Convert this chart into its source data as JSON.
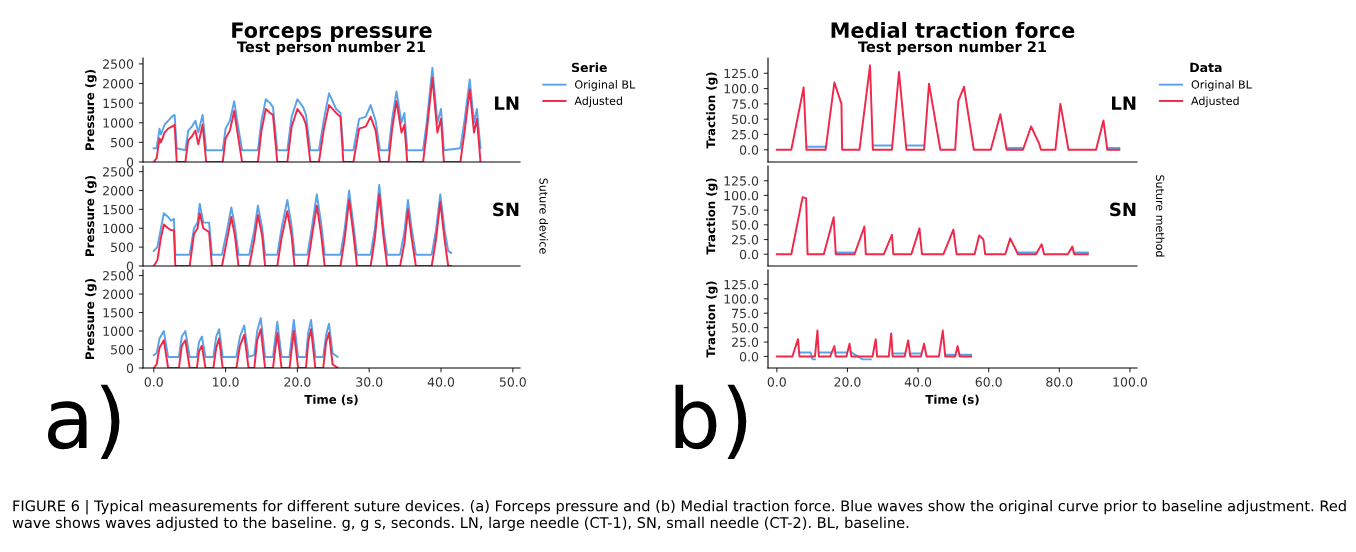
{
  "chart_data": [
    {
      "type": "line",
      "title": "Forceps pressure",
      "subtitle": "Test person number 21",
      "ylabel": "Pressure (g)",
      "legend_title": "Serie",
      "legend": "right",
      "tick_labels": "y",
      "grid": false,
      "xlim": [
        -1.5,
        51
      ],
      "ylim": [
        0,
        2650
      ],
      "yticks": [
        0,
        500,
        1000,
        1500,
        2000,
        2500
      ],
      "annotations": [
        "LN"
      ],
      "x": [
        0.0,
        0.4,
        0.8,
        1.0,
        1.5,
        2.0,
        2.5,
        2.9,
        3.2,
        4.4,
        4.8,
        5.3,
        5.8,
        6.2,
        6.8,
        7.3,
        9.6,
        10.0,
        10.6,
        11.2,
        11.7,
        12.3,
        14.5,
        15.0,
        15.6,
        16.2,
        16.6,
        17.2,
        18.6,
        19.2,
        20.0,
        20.8,
        21.2,
        21.8,
        23.0,
        23.7,
        24.4,
        25.4,
        26.0,
        26.4,
        27.8,
        28.6,
        29.5,
        30.2,
        30.9,
        31.5,
        32.7,
        33.2,
        33.8,
        34.5,
        34.9,
        35.3,
        37.5,
        38.0,
        38.8,
        39.5,
        40.0,
        40.4,
        42.7,
        43.3,
        44.0,
        44.6,
        45.0,
        45.5
      ],
      "series": [
        {
          "name": "Original BL",
          "color": "#5ba3e8",
          "values": [
            350,
            350,
            850,
            700,
            950,
            1050,
            1150,
            1200,
            350,
            300,
            800,
            900,
            1050,
            750,
            1200,
            300,
            300,
            850,
            1050,
            1550,
            950,
            300,
            300,
            1050,
            1600,
            1500,
            1400,
            300,
            300,
            1150,
            1600,
            1400,
            1200,
            300,
            300,
            1100,
            1750,
            1350,
            1250,
            300,
            300,
            1100,
            1150,
            1450,
            1050,
            300,
            300,
            1100,
            1800,
            1000,
            1250,
            300,
            300,
            1000,
            2400,
            1000,
            1350,
            300,
            350,
            1100,
            2100,
            1000,
            1350,
            350
          ]
        },
        {
          "name": "Adjusted",
          "color": "#f0284a",
          "values": [
            0,
            100,
            600,
            500,
            750,
            850,
            900,
            950,
            0,
            0,
            550,
            650,
            800,
            450,
            950,
            0,
            0,
            600,
            800,
            1300,
            700,
            0,
            0,
            800,
            1350,
            1250,
            1200,
            0,
            0,
            900,
            1350,
            1150,
            950,
            0,
            0,
            850,
            1450,
            1250,
            1150,
            0,
            0,
            850,
            900,
            1150,
            800,
            0,
            0,
            850,
            1550,
            750,
            950,
            0,
            0,
            750,
            2150,
            750,
            1100,
            0,
            0,
            800,
            1850,
            750,
            1100,
            0
          ]
        }
      ]
    },
    {
      "type": "line",
      "ylabel": "Pressure (g)",
      "tick_labels": "y",
      "grid": false,
      "xlim": [
        -1.5,
        51
      ],
      "ylim": [
        0,
        2650
      ],
      "yticks": [
        0,
        500,
        1000,
        1500,
        2000,
        2500
      ],
      "annotations": [
        "SN",
        "Suture device"
      ],
      "x": [
        0.0,
        0.5,
        1.0,
        1.4,
        2.0,
        2.4,
        2.8,
        3.0,
        5.0,
        5.6,
        6.1,
        6.4,
        6.9,
        7.7,
        8.1,
        9.5,
        10.2,
        10.8,
        11.3,
        11.8,
        13.3,
        14.0,
        14.5,
        15.1,
        15.5,
        17.2,
        17.8,
        18.6,
        19.2,
        19.6,
        21.4,
        22.0,
        22.7,
        23.3,
        23.8,
        26.0,
        26.6,
        27.2,
        27.8,
        28.3,
        30.2,
        30.8,
        31.4,
        32.0,
        32.5,
        34.3,
        34.9,
        35.4,
        35.9,
        36.5,
        38.7,
        39.3,
        39.9,
        40.5,
        41.0,
        41.4
      ],
      "series": [
        {
          "color": "#5ba3e8",
          "values": [
            400,
            500,
            1000,
            1400,
            1300,
            1200,
            1250,
            300,
            300,
            1000,
            1150,
            1650,
            1150,
            1150,
            300,
            300,
            950,
            1550,
            1050,
            300,
            300,
            950,
            1600,
            1000,
            300,
            300,
            1000,
            1750,
            1050,
            300,
            300,
            1000,
            1900,
            1150,
            300,
            300,
            1000,
            2000,
            1100,
            300,
            300,
            1000,
            2150,
            1000,
            300,
            300,
            900,
            1750,
            1000,
            300,
            300,
            950,
            1900,
            950,
            400,
            350
          ]
        },
        {
          "color": "#f0284a",
          "values": [
            0,
            150,
            750,
            1100,
            1000,
            950,
            950,
            0,
            0,
            850,
            1000,
            1400,
            1000,
            900,
            0,
            0,
            700,
            1300,
            800,
            0,
            0,
            700,
            1350,
            800,
            0,
            0,
            750,
            1450,
            800,
            0,
            0,
            750,
            1600,
            850,
            0,
            0,
            750,
            1750,
            850,
            0,
            0,
            750,
            1900,
            750,
            0,
            0,
            600,
            1500,
            750,
            0,
            0,
            700,
            1700,
            700,
            0,
            0
          ]
        }
      ]
    },
    {
      "type": "line",
      "ylabel": "Pressure (g)",
      "xlabel": "Time (s)",
      "grid": false,
      "xlim": [
        -1.5,
        51
      ],
      "ylim": [
        0,
        2650
      ],
      "yticks": [
        0,
        500,
        1000,
        1500,
        2000,
        2500
      ],
      "xticks": [
        {
          "value": 0,
          "label": "0.0"
        },
        {
          "value": 10,
          "label": "10.0"
        },
        {
          "value": 20,
          "label": "20.0"
        },
        {
          "value": 30,
          "label": "30.0"
        },
        {
          "value": 40,
          "label": "40.0"
        },
        {
          "value": 50,
          "label": "50.0"
        }
      ],
      "annotations": [
        "a)",
        "FIGURE 6 | Typical measurements for different suture devices. (a) Forceps pressure and (b) Medial traction force. Blue waves show the original curve prior to baseline adjustment. Red wave shows waves adjusted to the baseline. g, g s, seconds. LN, large needle (CT-1), SN, small needle (CT-2). BL, baseline."
      ],
      "x": [
        0.0,
        0.4,
        0.8,
        1.4,
        2.0,
        3.5,
        3.9,
        4.4,
        5.0,
        6.0,
        6.3,
        6.7,
        7.2,
        8.3,
        8.7,
        9.1,
        9.6,
        11.5,
        12.0,
        12.6,
        13.2,
        14.0,
        14.4,
        14.9,
        15.5,
        16.6,
        17.2,
        17.8,
        18.9,
        19.5,
        20.1,
        21.2,
        21.5,
        21.9,
        22.5,
        23.6,
        24.0,
        24.4,
        24.9,
        25.6
      ],
      "series": [
        {
          "color": "#5ba3e8",
          "values": [
            350,
            400,
            800,
            1000,
            300,
            300,
            850,
            1000,
            300,
            300,
            700,
            850,
            300,
            300,
            850,
            1050,
            300,
            300,
            850,
            1150,
            300,
            350,
            1000,
            1350,
            300,
            300,
            1250,
            300,
            300,
            1300,
            300,
            300,
            950,
            1300,
            300,
            300,
            900,
            1200,
            400,
            300
          ]
        },
        {
          "color": "#f0284a",
          "values": [
            0,
            100,
            550,
            750,
            0,
            0,
            600,
            750,
            0,
            0,
            450,
            600,
            0,
            0,
            550,
            800,
            0,
            0,
            600,
            900,
            0,
            0,
            750,
            1050,
            0,
            0,
            950,
            0,
            0,
            1000,
            0,
            0,
            700,
            1050,
            0,
            0,
            700,
            950,
            100,
            0
          ]
        }
      ]
    },
    {
      "type": "line",
      "title": "Medial traction force",
      "subtitle": "Test person number 21",
      "ylabel": "Traction (g)",
      "legend_title": "Data",
      "legend": "right",
      "tick_labels": "y",
      "grid": false,
      "xlim": [
        -2.5,
        102
      ],
      "ylim": [
        -20,
        150
      ],
      "yticks": [
        {
          "value": 0,
          "label": "0.0"
        },
        {
          "value": 25,
          "label": "25.0"
        },
        {
          "value": 50,
          "label": "50.0"
        },
        {
          "value": 75,
          "label": "75.0"
        },
        {
          "value": 100,
          "label": "100.0"
        },
        {
          "value": 125,
          "label": "125.0"
        }
      ],
      "annotations": [
        "LN"
      ],
      "x": [
        0,
        4.1,
        7.6,
        8.4,
        13.8,
        16.3,
        18.3,
        18.5,
        23.4,
        26.4,
        27.2,
        32.6,
        34.6,
        36.7,
        41.7,
        43.1,
        46.3,
        50.5,
        51.4,
        53.0,
        55.8,
        60.6,
        63.3,
        65.1,
        69.7,
        72.0,
        74.3,
        74.8,
        78.9,
        80.3,
        82.6,
        90.4,
        92.5,
        93.6,
        97.0
      ],
      "series": [
        {
          "name": "Original BL",
          "color": "#5ba3e8",
          "values": [
            null,
            null,
            null,
            5,
            5,
            null,
            null,
            null,
            null,
            null,
            7,
            7,
            null,
            7,
            7,
            null,
            null,
            null,
            null,
            null,
            null,
            null,
            null,
            3,
            3,
            null,
            null,
            null,
            null,
            null,
            null,
            null,
            null,
            3,
            3
          ]
        },
        {
          "name": "Adjusted",
          "color": "#f0284a",
          "values": [
            0,
            0,
            102,
            0,
            0,
            110,
            75,
            0,
            0,
            138,
            0,
            0,
            127,
            0,
            0,
            108,
            0,
            0,
            80,
            103,
            0,
            0,
            58,
            0,
            0,
            38,
            10,
            0,
            0,
            75,
            0,
            0,
            48,
            0,
            0
          ]
        }
      ]
    },
    {
      "type": "line",
      "ylabel": "Traction (g)",
      "tick_labels": "y",
      "grid": false,
      "xlim": [
        -2.5,
        102
      ],
      "ylim": [
        -20,
        150
      ],
      "yticks": [
        {
          "value": 0,
          "label": "0.0"
        },
        {
          "value": 25,
          "label": "25.0"
        },
        {
          "value": 50,
          "label": "50.0"
        },
        {
          "value": 75,
          "label": "75.0"
        },
        {
          "value": 100,
          "label": "100.0"
        },
        {
          "value": 125,
          "label": "125.0"
        }
      ],
      "annotations": [
        "SN",
        "Suture method"
      ],
      "x": [
        0,
        4.1,
        7.3,
        8.3,
        8.7,
        13.3,
        16.1,
        16.7,
        22.0,
        24.8,
        25.2,
        30.3,
        32.6,
        33.0,
        38.1,
        40.4,
        41.1,
        47.2,
        50.0,
        50.9,
        56.0,
        57.3,
        58.5,
        59.0,
        64.7,
        66.1,
        68.3,
        73.4,
        75.0,
        75.7,
        82.4,
        83.7,
        84.2,
        88.1
      ],
      "series": [
        {
          "color": "#5ba3e8",
          "values": [
            null,
            null,
            null,
            null,
            null,
            null,
            null,
            3,
            3,
            null,
            null,
            null,
            null,
            null,
            null,
            null,
            null,
            null,
            null,
            null,
            null,
            null,
            null,
            null,
            null,
            null,
            3,
            3,
            null,
            null,
            null,
            null,
            3,
            3
          ]
        },
        {
          "color": "#f0284a",
          "values": [
            0,
            0,
            97,
            95,
            0,
            0,
            63,
            0,
            0,
            47,
            0,
            0,
            33,
            0,
            0,
            44,
            0,
            0,
            42,
            0,
            0,
            32,
            25,
            0,
            0,
            27,
            0,
            0,
            17,
            0,
            0,
            13,
            0,
            0
          ]
        }
      ]
    },
    {
      "type": "line",
      "ylabel": "Traction (g)",
      "xlabel": "Time (s)",
      "grid": false,
      "xlim": [
        -2.5,
        102
      ],
      "ylim": [
        -20,
        150
      ],
      "yticks": [
        {
          "value": 0,
          "label": "0.0"
        },
        {
          "value": 25,
          "label": "25.0"
        },
        {
          "value": 50,
          "label": "50.0"
        },
        {
          "value": 75,
          "label": "75.0"
        },
        {
          "value": 100,
          "label": "100.0"
        },
        {
          "value": 125,
          "label": "125.0"
        }
      ],
      "xticks": [
        {
          "value": 0,
          "label": "0.0"
        },
        {
          "value": 20,
          "label": "20.0"
        },
        {
          "value": 40,
          "label": "40.0"
        },
        {
          "value": 60,
          "label": "60.0"
        },
        {
          "value": 80,
          "label": "80.0"
        },
        {
          "value": 100,
          "label": "100.0"
        }
      ],
      "annotations": [
        "b)"
      ],
      "x": [
        0,
        4.4,
        6.0,
        6.4,
        9.6,
        10.1,
        10.8,
        11.5,
        11.9,
        15.1,
        16.3,
        16.7,
        19.7,
        20.6,
        21.1,
        24.3,
        26.6,
        27.1,
        28.0,
        28.4,
        31.7,
        32.4,
        32.8,
        36.2,
        37.2,
        37.8,
        40.8,
        41.7,
        42.4,
        45.9,
        47.0,
        47.7,
        50.5,
        51.2,
        51.8,
        55.0
      ],
      "series": [
        {
          "color": "#5ba3e8",
          "values": [
            null,
            null,
            null,
            7,
            7,
            -5,
            -5,
            null,
            7,
            7,
            null,
            7,
            7,
            null,
            7,
            -5,
            -5,
            null,
            null,
            null,
            null,
            null,
            5,
            5,
            null,
            5,
            5,
            null,
            null,
            null,
            null,
            3,
            3,
            null,
            3,
            3
          ]
        },
        {
          "color": "#f0284a",
          "values": [
            0,
            0,
            30,
            0,
            0,
            0,
            0,
            45,
            0,
            0,
            18,
            0,
            0,
            22,
            0,
            0,
            0,
            0,
            30,
            0,
            0,
            40,
            0,
            0,
            28,
            0,
            0,
            22,
            0,
            0,
            45,
            0,
            0,
            18,
            0,
            0
          ]
        }
      ]
    }
  ]
}
